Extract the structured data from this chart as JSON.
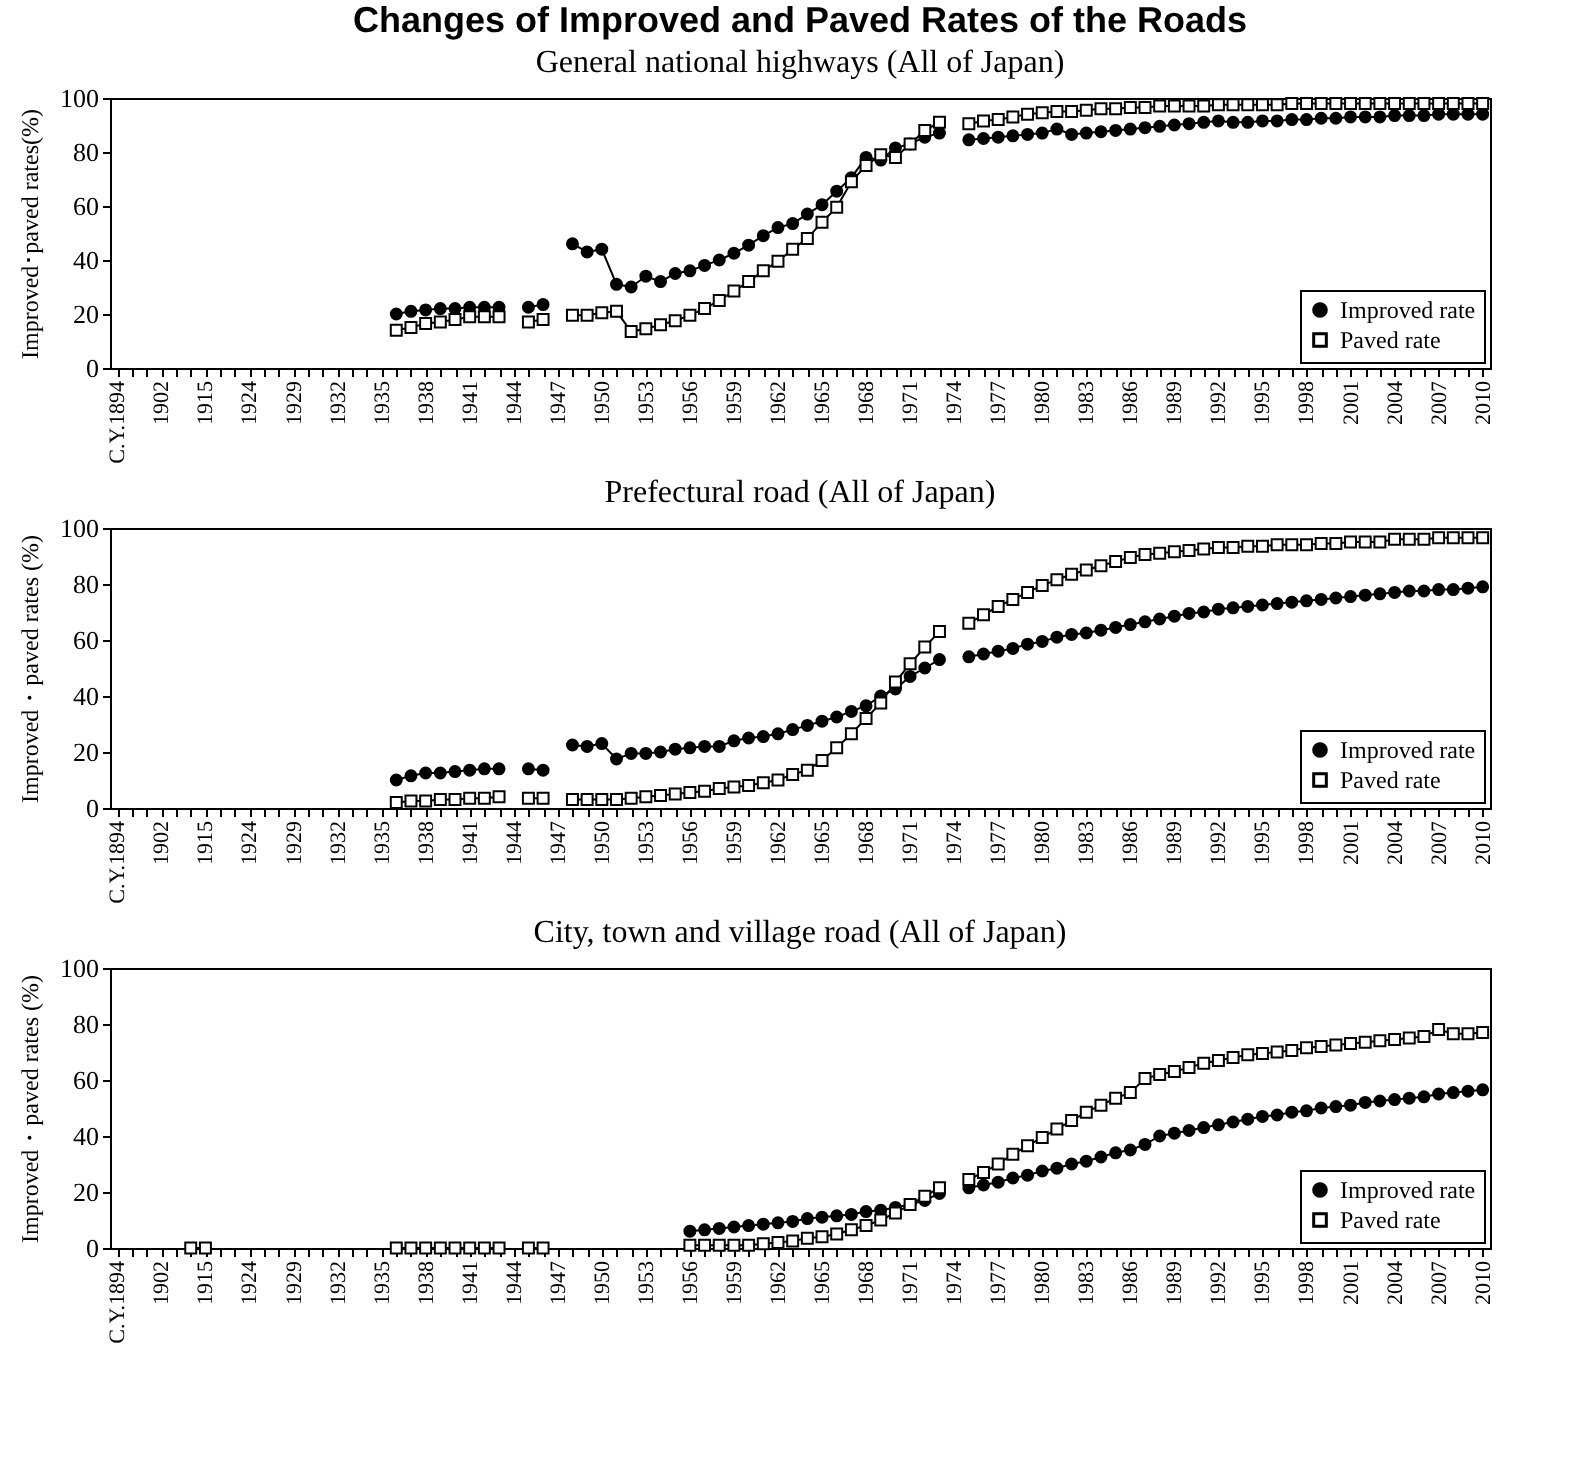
{
  "chart_data": [
    {
      "type": "line",
      "title": "Changes of Improved and Paved Rates of the Roads",
      "subtitle": "General national highways (All of Japan)",
      "ylabel": "Improved･paved rates(%)",
      "legend": "bottom right",
      "ylim": [
        0,
        100
      ],
      "yticks": [
        0,
        20,
        40,
        60,
        80,
        100
      ],
      "categories": [
        "C.Y.1894",
        null,
        null,
        "1902",
        null,
        null,
        "1915",
        null,
        null,
        "1924",
        null,
        null,
        "1929",
        null,
        null,
        "1932",
        null,
        null,
        "1935",
        null,
        null,
        "1938",
        null,
        null,
        "1941",
        null,
        null,
        "1944",
        null,
        null,
        "1947",
        null,
        null,
        "1950",
        null,
        null,
        "1953",
        null,
        null,
        "1956",
        null,
        null,
        "1959",
        null,
        null,
        "1962",
        null,
        null,
        "1965",
        null,
        null,
        "1968",
        null,
        null,
        "1971",
        null,
        null,
        "1974",
        null,
        null,
        "1977",
        null,
        null,
        "1980",
        null,
        null,
        "1983",
        null,
        null,
        "1986",
        null,
        null,
        "1989",
        null,
        null,
        "1992",
        null,
        null,
        "1995",
        null,
        null,
        "1998",
        null,
        null,
        "2001",
        null,
        null,
        "2004",
        null,
        null,
        "2007",
        null,
        null,
        "2010"
      ],
      "series": [
        {
          "name": "Improved rate",
          "color": "#000000",
          "marker": "circle",
          "values": [
            null,
            null,
            null,
            null,
            null,
            null,
            null,
            null,
            null,
            null,
            null,
            null,
            null,
            null,
            null,
            null,
            null,
            null,
            null,
            20,
            21,
            21.5,
            22,
            22,
            22.5,
            22.5,
            22.5,
            null,
            22.5,
            23.5,
            null,
            46,
            43,
            44,
            31,
            30,
            34,
            32,
            35,
            36,
            38,
            40,
            42.5,
            45.5,
            49,
            52,
            53.5,
            57,
            60.5,
            65.5,
            70.5,
            78,
            77,
            81.5,
            83,
            85.5,
            87,
            null,
            84.5,
            85,
            85.5,
            86,
            86.5,
            87,
            88.5,
            86.5,
            87,
            87.5,
            88,
            88.5,
            89,
            89.5,
            90,
            90.5,
            91,
            91.5,
            91,
            91,
            91.5,
            91.5,
            92,
            92,
            92.5,
            92.5,
            93,
            93,
            93,
            93.5,
            93.5,
            93.5,
            94,
            94,
            94,
            94
          ]
        },
        {
          "name": "Paved rate",
          "color": "#000000",
          "marker": "square",
          "values": [
            null,
            null,
            null,
            null,
            null,
            null,
            null,
            null,
            null,
            null,
            null,
            null,
            null,
            null,
            null,
            null,
            null,
            null,
            null,
            14,
            15,
            16.5,
            17,
            18,
            19,
            19,
            19,
            null,
            17,
            18,
            null,
            19.5,
            19.5,
            20.5,
            21,
            13.5,
            14.5,
            16,
            17.5,
            19.5,
            22,
            25,
            28.5,
            32,
            36,
            39.5,
            44,
            48,
            54,
            59.5,
            69,
            75,
            79,
            78,
            83,
            88,
            91,
            null,
            90.5,
            91.5,
            92,
            93,
            94,
            94.5,
            95,
            95,
            95.5,
            96,
            96,
            96.5,
            96.5,
            97,
            97,
            97,
            97,
            97.5,
            97.5,
            97.5,
            97.5,
            97.5,
            98,
            98,
            98,
            98,
            98,
            98,
            98,
            98,
            98,
            98,
            98,
            98,
            98,
            98
          ]
        }
      ]
    },
    {
      "type": "line",
      "title": "Prefectural road (All of Japan)",
      "ylabel": "Improved・paved rates (%)",
      "legend": "bottom right",
      "ylim": [
        0,
        100
      ],
      "yticks": [
        0,
        20,
        40,
        60,
        80,
        100
      ],
      "categories": [
        "C.Y.1894",
        null,
        null,
        "1902",
        null,
        null,
        "1915",
        null,
        null,
        "1924",
        null,
        null,
        "1929",
        null,
        null,
        "1932",
        null,
        null,
        "1935",
        null,
        null,
        "1938",
        null,
        null,
        "1941",
        null,
        null,
        "1944",
        null,
        null,
        "1947",
        null,
        null,
        "1950",
        null,
        null,
        "1953",
        null,
        null,
        "1956",
        null,
        null,
        "1959",
        null,
        null,
        "1962",
        null,
        null,
        "1965",
        null,
        null,
        "1968",
        null,
        null,
        "1971",
        null,
        null,
        "1974",
        null,
        null,
        "1977",
        null,
        null,
        "1980",
        null,
        null,
        "1983",
        null,
        null,
        "1986",
        null,
        null,
        "1989",
        null,
        null,
        "1992",
        null,
        null,
        "1995",
        null,
        null,
        "1998",
        null,
        null,
        "2001",
        null,
        null,
        "2004",
        null,
        null,
        "2007",
        null,
        null,
        "2010"
      ],
      "series": [
        {
          "name": "Improved rate",
          "color": "#000000",
          "marker": "circle",
          "values": [
            null,
            null,
            null,
            null,
            null,
            null,
            null,
            null,
            null,
            null,
            null,
            null,
            null,
            null,
            null,
            null,
            null,
            null,
            null,
            10,
            11.5,
            12.5,
            12.5,
            13,
            13.5,
            14,
            14,
            null,
            14,
            13.5,
            null,
            22.5,
            22,
            23,
            17.5,
            19.5,
            19.5,
            20,
            21,
            21.5,
            22,
            22,
            24,
            25,
            25.5,
            26.5,
            28,
            29.5,
            31,
            32.5,
            34.5,
            36.5,
            40,
            42.5,
            47,
            50,
            53,
            null,
            54,
            55,
            56,
            57,
            58.5,
            59.5,
            61,
            62,
            62.5,
            63.5,
            64.5,
            65.5,
            66.5,
            67.5,
            68.5,
            69.5,
            70,
            71,
            71.5,
            72,
            72.5,
            73,
            73.5,
            74,
            74.5,
            75,
            75.5,
            76,
            76.5,
            77,
            77.5,
            77.5,
            78,
            78,
            78.5,
            79
          ]
        },
        {
          "name": "Paved rate",
          "color": "#000000",
          "marker": "square",
          "values": [
            null,
            null,
            null,
            null,
            null,
            null,
            null,
            null,
            null,
            null,
            null,
            null,
            null,
            null,
            null,
            null,
            null,
            null,
            null,
            2,
            2.5,
            2.5,
            3,
            3,
            3.5,
            3.5,
            4,
            null,
            3.5,
            3.5,
            null,
            3,
            3,
            3,
            3,
            3.5,
            4,
            4.5,
            5,
            5.5,
            6,
            7,
            7.5,
            8,
            9,
            10,
            12,
            13.5,
            17,
            21.5,
            26.5,
            32,
            37.5,
            45,
            51.5,
            57.5,
            63,
            null,
            66,
            69,
            72,
            74.5,
            77,
            79.5,
            81.5,
            83.5,
            85,
            86.5,
            88,
            89.5,
            90.5,
            91,
            91.5,
            92,
            92.5,
            93,
            93,
            93.5,
            93.5,
            94,
            94,
            94,
            94.5,
            94.5,
            95,
            95,
            95,
            96,
            96,
            96,
            96.5,
            96.5,
            96.5,
            96.5
          ]
        }
      ]
    },
    {
      "type": "line",
      "title": "City, town and village road (All of Japan)",
      "ylabel": "Improved・paved rates (%)",
      "legend": "bottom right",
      "ylim": [
        0,
        100
      ],
      "yticks": [
        0,
        20,
        40,
        60,
        80,
        100
      ],
      "categories": [
        "C.Y.1894",
        null,
        null,
        "1902",
        null,
        null,
        "1915",
        null,
        null,
        "1924",
        null,
        null,
        "1929",
        null,
        null,
        "1932",
        null,
        null,
        "1935",
        null,
        null,
        "1938",
        null,
        null,
        "1941",
        null,
        null,
        "1944",
        null,
        null,
        "1947",
        null,
        null,
        "1950",
        null,
        null,
        "1953",
        null,
        null,
        "1956",
        null,
        null,
        "1959",
        null,
        null,
        "1962",
        null,
        null,
        "1965",
        null,
        null,
        "1968",
        null,
        null,
        "1971",
        null,
        null,
        "1974",
        null,
        null,
        "1977",
        null,
        null,
        "1980",
        null,
        null,
        "1983",
        null,
        null,
        "1986",
        null,
        null,
        "1989",
        null,
        null,
        "1992",
        null,
        null,
        "1995",
        null,
        null,
        "1998",
        null,
        null,
        "2001",
        null,
        null,
        "2004",
        null,
        null,
        "2007",
        null,
        null,
        "2010"
      ],
      "series": [
        {
          "name": "Improved rate",
          "color": "#000000",
          "marker": "circle",
          "values": [
            null,
            null,
            null,
            null,
            null,
            null,
            null,
            null,
            null,
            null,
            null,
            null,
            null,
            null,
            null,
            null,
            null,
            null,
            null,
            null,
            null,
            null,
            null,
            null,
            null,
            null,
            null,
            null,
            null,
            null,
            null,
            null,
            null,
            null,
            null,
            null,
            null,
            null,
            null,
            6,
            6.5,
            7,
            7.5,
            8,
            8.5,
            9,
            9.5,
            10.5,
            11,
            11.5,
            12,
            13,
            13.5,
            14.5,
            15.5,
            17,
            19.5,
            null,
            21.5,
            22.5,
            23.5,
            25,
            26,
            27.5,
            28.5,
            30,
            31,
            32.5,
            34,
            35,
            37,
            40,
            41,
            42,
            43,
            44,
            45,
            46,
            47,
            47.5,
            48.5,
            49,
            50,
            50.5,
            51,
            52,
            52.5,
            53,
            53.5,
            54,
            55,
            55.5,
            56,
            56.5
          ]
        },
        {
          "name": "Paved rate",
          "color": "#000000",
          "marker": "square",
          "values": [
            null,
            null,
            null,
            null,
            null,
            0,
            0,
            null,
            null,
            null,
            null,
            null,
            null,
            null,
            null,
            null,
            null,
            null,
            null,
            0,
            0,
            0,
            0,
            0,
            0,
            0,
            0,
            null,
            0,
            0,
            null,
            null,
            null,
            null,
            null,
            null,
            null,
            null,
            null,
            1,
            1,
            1,
            1,
            1,
            1.5,
            2,
            2.5,
            3.5,
            4,
            5,
            6.5,
            8,
            10,
            12.5,
            15.5,
            18.5,
            21.5,
            null,
            24.5,
            27,
            30,
            33.5,
            36.5,
            39.5,
            42.5,
            45.5,
            48.5,
            51,
            53.5,
            55.5,
            60.5,
            62,
            63,
            64.5,
            66,
            67,
            68,
            69,
            69.5,
            70,
            70.5,
            71.5,
            72,
            72.5,
            73,
            73.5,
            74,
            74.5,
            75,
            75.5,
            78,
            76.5,
            76.5,
            77
          ]
        }
      ]
    }
  ]
}
